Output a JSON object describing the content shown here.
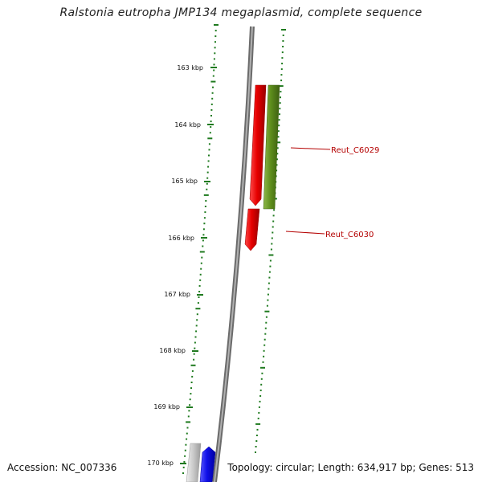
{
  "title": "Ralstonia eutropha JMP134 megaplasmid, complete sequence",
  "accession": "Accession: NC_007336",
  "topology": "Topology: circular; Length: 634,917 bp; Genes: 513",
  "ticks": [
    "163 kbp",
    "164 kbp",
    "165 kbp",
    "166 kbp",
    "167 kbp",
    "168 kbp",
    "169 kbp",
    "170 kbp"
  ],
  "genes": [
    {
      "label": "Reut_C6029",
      "color": "#5e8e1c"
    },
    {
      "label": "Reut_C6030",
      "color": "#e60000"
    }
  ],
  "colors": {
    "backbone": "#808080",
    "ticks": "#1f7a1f",
    "gene_forward": "#e60000",
    "gene_olive": "#5e8e1c",
    "gene_blue": "#1010e8",
    "gene_gray": "#c8c8c8",
    "label": "#b40000"
  }
}
